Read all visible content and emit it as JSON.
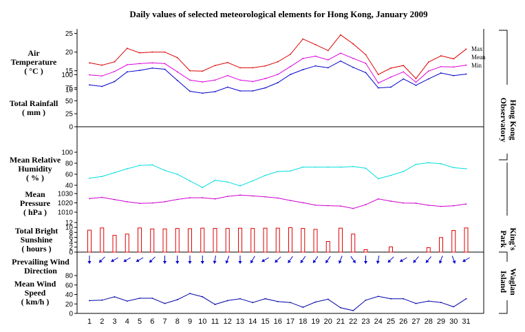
{
  "title": "Daily values of selected meteorological elements for Hong Kong, January 2009",
  "days": [
    "1",
    "2",
    "3",
    "4",
    "5",
    "6",
    "7",
    "8",
    "9",
    "10",
    "11",
    "12",
    "13",
    "14",
    "15",
    "16",
    "17",
    "18",
    "19",
    "20",
    "21",
    "22",
    "23",
    "24",
    "25",
    "26",
    "27",
    "28",
    "29",
    "30",
    "31"
  ],
  "panels": {
    "air_temperature": {
      "label_lines": [
        "Air",
        "Temperature",
        "( °C )"
      ],
      "ticks": [
        "0",
        "5",
        "10",
        "15",
        "20",
        "25"
      ]
    },
    "rainfall": {
      "label_lines": [
        "Total Rainfall",
        "( mm )"
      ],
      "ticks": [
        "0",
        "25",
        "50",
        "75",
        "100"
      ]
    },
    "humidity": {
      "label_lines": [
        "Mean Relative",
        "Humidity",
        "( % )"
      ],
      "ticks": [
        "40",
        "60",
        "80",
        "100"
      ]
    },
    "pressure": {
      "label_lines": [
        "Mean",
        "Pressure",
        "( hPa )"
      ],
      "ticks": [
        "1010",
        "1020",
        "1030"
      ]
    },
    "sunshine": {
      "label_lines": [
        "Total Bright",
        "Sunshine",
        "( hours )"
      ],
      "ticks": [
        "0",
        "2",
        "4",
        "6",
        "8",
        "10",
        "12"
      ]
    },
    "wind_direction": {
      "label_lines": [
        "Prevailing Wind",
        "Direction"
      ]
    },
    "wind_speed": {
      "label_lines": [
        "Mean Wind",
        "Speed",
        "( km/h )"
      ],
      "ticks": [
        "0",
        "20",
        "40",
        "60",
        "80"
      ]
    }
  },
  "legend": {
    "max": "Max",
    "mean": "Mean",
    "min": "Min"
  },
  "stations": {
    "hko": [
      "Hong Kong",
      "Observatory"
    ],
    "kings_park": [
      "King's",
      "Park"
    ],
    "waglan": [
      "Waglan",
      "Island"
    ]
  },
  "colors": {
    "max": "#dd0000",
    "mean": "#dd00dd",
    "min": "#0000cc",
    "humidity": "#00dddd",
    "pressure": "#cc00cc",
    "sunshine": "#dd0000",
    "wind_dir": "#0000cc",
    "wind_speed": "#0000aa"
  },
  "chart_data": [
    {
      "type": "line",
      "panel": "air_temperature",
      "ylim": [
        0,
        25
      ],
      "x": [
        1,
        2,
        3,
        4,
        5,
        6,
        7,
        8,
        9,
        10,
        11,
        12,
        13,
        14,
        15,
        16,
        17,
        18,
        19,
        20,
        21,
        22,
        23,
        24,
        25,
        26,
        27,
        28,
        29,
        30,
        31
      ],
      "series": [
        {
          "name": "Max",
          "values": [
            17.1,
            16.5,
            17.4,
            21.0,
            19.8,
            20.0,
            20.0,
            18.5,
            15.0,
            14.9,
            16.4,
            17.2,
            15.8,
            15.8,
            16.3,
            17.4,
            19.4,
            23.5,
            22.0,
            20.4,
            24.6,
            22.2,
            19.3,
            14.0,
            15.7,
            16.4,
            12.9,
            17.3,
            19.0,
            18.2,
            20.8
          ]
        },
        {
          "name": "Mean",
          "values": [
            13.9,
            13.6,
            14.8,
            16.6,
            16.9,
            17.1,
            16.9,
            14.7,
            12.5,
            12.0,
            12.5,
            13.7,
            12.5,
            12.1,
            12.9,
            14.0,
            16.1,
            18.3,
            18.9,
            17.9,
            19.7,
            18.3,
            17.0,
            11.7,
            13.3,
            14.7,
            11.9,
            14.9,
            16.1,
            16.0,
            16.5
          ]
        },
        {
          "name": "Min",
          "values": [
            11.2,
            10.8,
            12.1,
            14.7,
            15.1,
            15.7,
            15.4,
            12.4,
            9.5,
            9.0,
            9.4,
            10.6,
            9.6,
            9.6,
            10.4,
            11.8,
            14.0,
            15.3,
            16.3,
            15.8,
            17.6,
            15.9,
            14.5,
            10.4,
            10.6,
            12.8,
            11.1,
            12.8,
            14.4,
            13.7,
            14.1
          ]
        }
      ]
    },
    {
      "type": "bar",
      "panel": "rainfall",
      "ylim": [
        0,
        100
      ],
      "x": [
        1,
        2,
        3,
        4,
        5,
        6,
        7,
        8,
        9,
        10,
        11,
        12,
        13,
        14,
        15,
        16,
        17,
        18,
        19,
        20,
        21,
        22,
        23,
        24,
        25,
        26,
        27,
        28,
        29,
        30,
        31
      ],
      "values": [
        0,
        0,
        0,
        0,
        0,
        0,
        0,
        0,
        0,
        0,
        0,
        0,
        0,
        0,
        0,
        0,
        0,
        0,
        0,
        0,
        0,
        0,
        0,
        0,
        0,
        0,
        0,
        0,
        0,
        0,
        0
      ]
    },
    {
      "type": "line",
      "panel": "humidity",
      "ylim": [
        20,
        100
      ],
      "x": [
        1,
        2,
        3,
        4,
        5,
        6,
        7,
        8,
        9,
        10,
        11,
        12,
        13,
        14,
        15,
        16,
        17,
        18,
        19,
        20,
        21,
        22,
        23,
        24,
        25,
        26,
        27,
        28,
        29,
        30,
        31
      ],
      "values": [
        53,
        56,
        63,
        70,
        76,
        77,
        67,
        60,
        48,
        36,
        49,
        46,
        39,
        48,
        58,
        65,
        66,
        73,
        73,
        73,
        73,
        74,
        71,
        52,
        58,
        65,
        78,
        81,
        79,
        72,
        70
      ]
    },
    {
      "type": "line",
      "panel": "pressure",
      "ylim": [
        1006,
        1034
      ],
      "x": [
        1,
        2,
        3,
        4,
        5,
        6,
        7,
        8,
        9,
        10,
        11,
        12,
        13,
        14,
        15,
        16,
        17,
        18,
        19,
        20,
        21,
        22,
        23,
        24,
        25,
        26,
        27,
        28,
        29,
        30,
        31
      ],
      "values": [
        1024.5,
        1025.9,
        1023.5,
        1021.2,
        1019.5,
        1019.8,
        1021.2,
        1023.7,
        1025.5,
        1025.5,
        1024.3,
        1027.0,
        1028.4,
        1027.5,
        1026.5,
        1025.2,
        1022.5,
        1020.2,
        1017.5,
        1017.0,
        1016.6,
        1014.0,
        1018.0,
        1024.2,
        1021.8,
        1019.8,
        1019.6,
        1017.4,
        1016.2,
        1016.9,
        1018.8
      ]
    },
    {
      "type": "bar",
      "panel": "sunshine",
      "ylim": [
        0,
        12
      ],
      "x": [
        1,
        2,
        3,
        4,
        5,
        6,
        7,
        8,
        9,
        10,
        11,
        12,
        13,
        14,
        15,
        16,
        17,
        18,
        19,
        20,
        21,
        22,
        23,
        24,
        25,
        26,
        27,
        28,
        29,
        30,
        31
      ],
      "values": [
        8.9,
        9.8,
        6.8,
        7.3,
        9.8,
        9.4,
        9.4,
        9.6,
        9.5,
        9.7,
        9.6,
        9.6,
        9.7,
        9.6,
        9.7,
        9.7,
        9.9,
        9.6,
        9.2,
        4.3,
        9.7,
        7.3,
        1.0,
        0,
        2.1,
        0,
        0,
        1.8,
        5.9,
        8.8,
        9.8
      ]
    },
    {
      "type": "scatter",
      "panel": "wind_direction",
      "x": [
        1,
        2,
        3,
        4,
        5,
        6,
        7,
        8,
        9,
        10,
        11,
        12,
        13,
        14,
        15,
        16,
        17,
        18,
        19,
        20,
        21,
        22,
        23,
        24,
        25,
        26,
        27,
        28,
        29,
        30,
        31
      ],
      "values": [
        360,
        45,
        60,
        60,
        60,
        45,
        360,
        360,
        360,
        360,
        10,
        20,
        360,
        30,
        60,
        45,
        35,
        35,
        35,
        35,
        20,
        325,
        360,
        10,
        45,
        60,
        40,
        40,
        20,
        340,
        60
      ]
    },
    {
      "type": "line",
      "panel": "wind_speed",
      "ylim": [
        0,
        100
      ],
      "x": [
        1,
        2,
        3,
        4,
        5,
        6,
        7,
        8,
        9,
        10,
        11,
        12,
        13,
        14,
        15,
        16,
        17,
        18,
        19,
        20,
        21,
        22,
        23,
        24,
        25,
        26,
        27,
        28,
        29,
        30,
        31
      ],
      "values": [
        27,
        28,
        35,
        26,
        32,
        32,
        21,
        29,
        42,
        35,
        19,
        27,
        31,
        23,
        31,
        25,
        23,
        13,
        24,
        30,
        12,
        6,
        28,
        36,
        31,
        31,
        21,
        26,
        23,
        14,
        31
      ]
    }
  ]
}
